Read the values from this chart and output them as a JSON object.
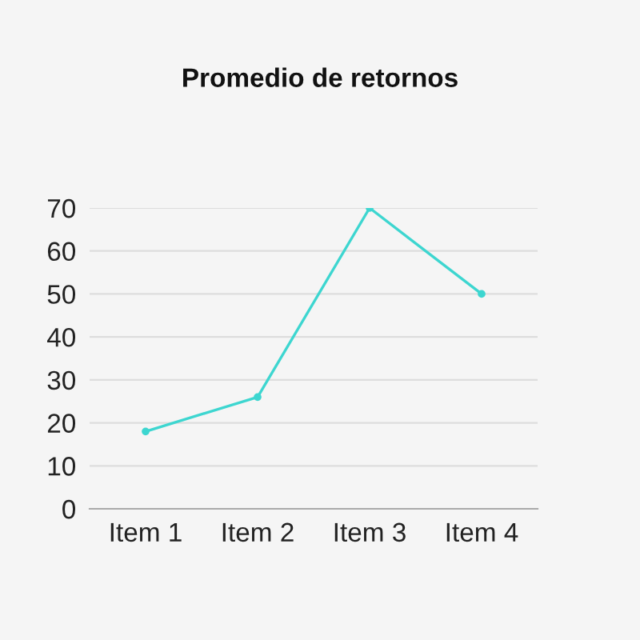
{
  "chart_data": {
    "type": "line",
    "title": "Promedio de retornos",
    "categories": [
      "Item 1",
      "Item 2",
      "Item 3",
      "Item 4"
    ],
    "series": [
      {
        "color": "#3dd6d0",
        "values": [
          18,
          26,
          70,
          50
        ]
      }
    ],
    "ylim": [
      0,
      70
    ],
    "yticks": [
      0,
      10,
      20,
      30,
      40,
      50,
      60,
      70
    ],
    "grid": "y",
    "marker": "circle",
    "line_style": "solid"
  }
}
